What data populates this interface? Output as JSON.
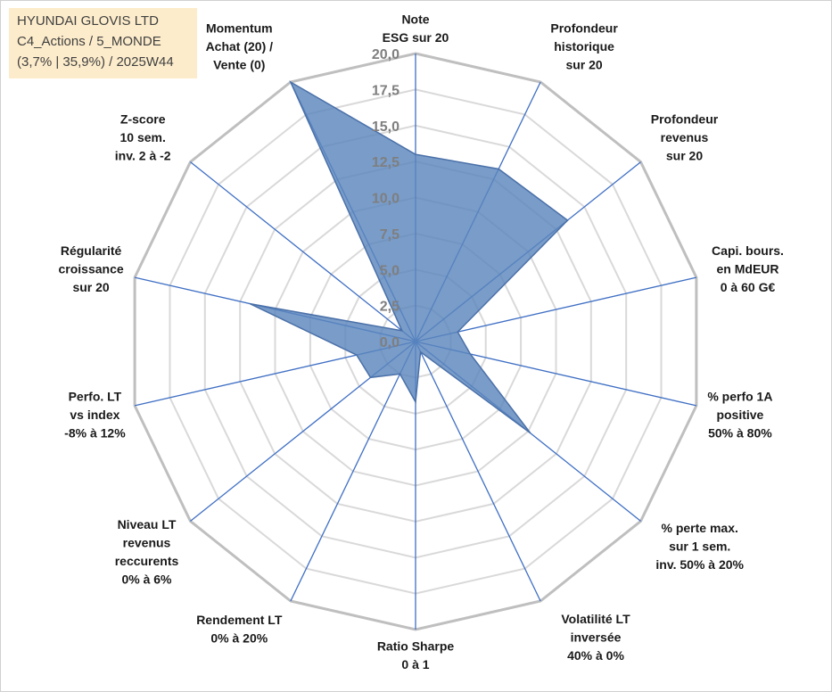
{
  "title_box": {
    "line1": "HYUNDAI GLOVIS LTD",
    "line2": "C4_Actions / 5_MONDE",
    "line3": "(3,7% | 35,9%) / 2025W44",
    "background": "#fdeccb"
  },
  "colors": {
    "fill": "#5b86bd",
    "fill_opacity": 0.82,
    "stroke": "#4a70a8",
    "axis": "#3f6fc4",
    "grid_outer": "#bfbfbf",
    "grid": "#d9d9d9"
  },
  "chart_data": {
    "type": "radar",
    "title": "",
    "r_range": [
      0,
      20
    ],
    "r_ticks": [
      "0,0",
      "2,5",
      "5,0",
      "7,5",
      "10,0",
      "12,5",
      "15,0",
      "17,5",
      "20,0"
    ],
    "categories": [
      [
        "Note",
        "ESG sur 20"
      ],
      [
        "Profondeur",
        "historique",
        "sur 20"
      ],
      [
        "Profondeur",
        "revenus",
        "sur 20"
      ],
      [
        "Capi. bours.",
        "en MdEUR",
        "0 à 60 G€"
      ],
      [
        "% perfo 1A",
        "positive",
        "50% à 80%"
      ],
      [
        "% perte max.",
        "sur 1 sem.",
        "inv. 50% à 20%"
      ],
      [
        "Volatilité LT",
        "inversée",
        "40% à 0%"
      ],
      [
        "Ratio Sharpe",
        "0 à 1"
      ],
      [
        "Rendement LT",
        "0% à 20%"
      ],
      [
        "Niveau LT",
        "revenus",
        "reccurents",
        "0% à 6%"
      ],
      [
        "Perfo. LT",
        "vs index",
        "-8% à 12%"
      ],
      [
        "Régularité",
        "croissance",
        "sur 20"
      ],
      [
        "Z-score",
        "10 sem.",
        "inv. 2 à -2"
      ],
      [
        "Momentum",
        "Achat (20) /",
        "Vente (0)"
      ]
    ],
    "series": [
      {
        "name": "HYUNDAI GLOVIS LTD",
        "values": [
          13.0,
          13.3,
          13.5,
          3.0,
          3.9,
          10.2,
          0.8,
          4.2,
          2.5,
          4.0,
          4.2,
          11.8,
          1.2,
          20.0
        ]
      }
    ]
  }
}
